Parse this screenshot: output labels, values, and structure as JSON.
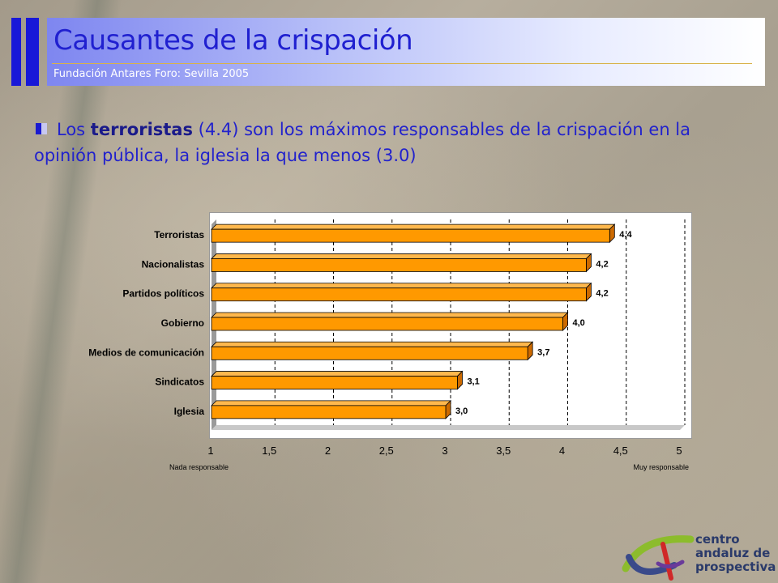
{
  "header": {
    "title": "Causantes de la crispación",
    "subtitle": "Fundación Antares Foro: Sevilla 2005"
  },
  "body": {
    "text_pre": "Los ",
    "text_bold": "terroristas",
    "text_post": " (4.4) son los máximos responsables de la crispación en la opinión pública, la iglesia la que menos (3.0)"
  },
  "chart_data": {
    "type": "bar",
    "orientation": "horizontal",
    "categories": [
      "Terroristas",
      "Nacionalistas",
      "Partidos políticos",
      "Gobierno",
      "Medios de comunicación",
      "Sindicatos",
      "Iglesia"
    ],
    "values": [
      4.4,
      4.2,
      4.2,
      4.0,
      3.7,
      3.1,
      3.0
    ],
    "value_labels": [
      "4,4",
      "4,2",
      "4,2",
      "4,0",
      "3,7",
      "3,1",
      "3,0"
    ],
    "xlim": [
      1,
      5
    ],
    "xticks": [
      "1",
      "1,5",
      "2",
      "2,5",
      "3",
      "3,5",
      "4",
      "4,5",
      "5"
    ],
    "xlabel_left": "Nada responsable",
    "xlabel_right": "Muy responsable",
    "grid": "vertical-dashed",
    "bar_color": "#ff9900"
  },
  "logo": {
    "line1": "centro",
    "line2": "andaluz de",
    "line3": "prospectiva"
  }
}
